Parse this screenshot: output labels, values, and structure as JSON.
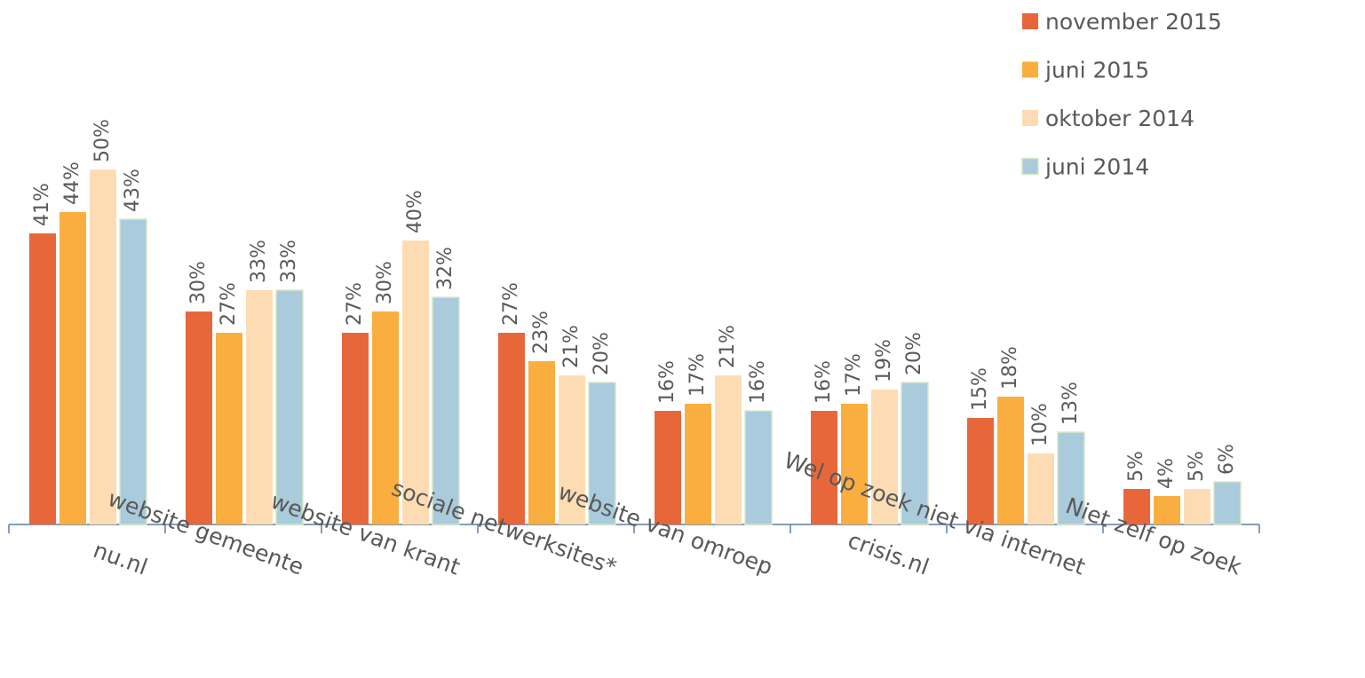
{
  "chart_data": {
    "type": "bar",
    "categories": [
      "nu.nl",
      "website gemeente",
      "website van krant",
      "sociale netwerksites*",
      "website van omroep",
      "crisis.nl",
      "Wel op zoek niet via internet",
      "Niet zelf op zoek"
    ],
    "series": [
      {
        "name": "november 2015",
        "color": "#e8673a",
        "values": [
          41,
          30,
          27,
          27,
          16,
          16,
          15,
          5
        ],
        "value_labels": [
          "41%",
          "30%",
          "27%",
          "27%",
          "16%",
          "16%",
          "15%",
          "5%"
        ]
      },
      {
        "name": "juni 2015",
        "color": "#f9ae3f",
        "values": [
          44,
          27,
          30,
          23,
          17,
          17,
          18,
          4
        ],
        "value_labels": [
          "44%",
          "27%",
          "30%",
          "23%",
          "17%",
          "17%",
          "18%",
          "4%"
        ]
      },
      {
        "name": "oktober 2014",
        "color": "#fddcb3",
        "values": [
          50,
          33,
          40,
          21,
          21,
          19,
          10,
          5
        ],
        "value_labels": [
          "50%",
          "33%",
          "40%",
          "21%",
          "21%",
          "19%",
          "10%",
          "5%"
        ]
      },
      {
        "name": "juni 2014",
        "color": "#a9cbdc",
        "values": [
          43,
          33,
          32,
          20,
          16,
          20,
          13,
          6
        ],
        "value_labels": [
          "43%",
          "33%",
          "32%",
          "20%",
          "16%",
          "20%",
          "13%",
          "6%"
        ]
      }
    ],
    "legend": "top-right"
  }
}
